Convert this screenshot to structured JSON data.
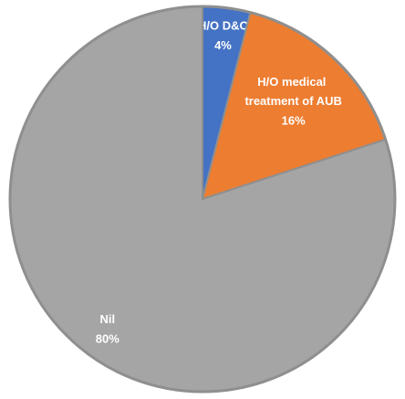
{
  "chart_data": {
    "type": "pie",
    "categories": [
      "H/O D&C",
      "H/O medical treatment of AUB",
      "Nil"
    ],
    "values": [
      4,
      16,
      80
    ],
    "value_labels": [
      "4%",
      "16%",
      "80%"
    ],
    "colors": [
      "#4472c4",
      "#ed7d31",
      "#a5a5a5"
    ]
  }
}
